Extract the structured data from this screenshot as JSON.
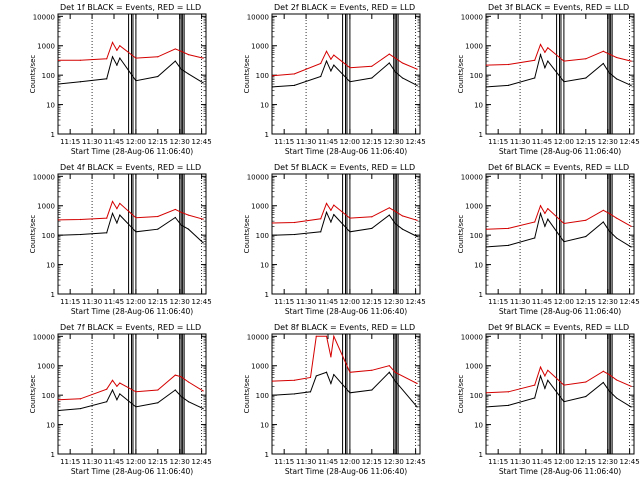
{
  "figure": {
    "common": {
      "ylabel": "Counts/sec",
      "xlabel": "Start Time (28-Aug-06 11:06:40)",
      "x_ticks": [
        "11:15",
        "11:30",
        "11:45",
        "12:00",
        "12:15",
        "12:30",
        "12:45"
      ],
      "y_ticks": [
        "1",
        "10",
        "100",
        "1000",
        "10000"
      ],
      "series": [
        {
          "name": "BLACK = Events",
          "color": "#000000"
        },
        {
          "name": "RED = LLD",
          "color": "#d40000"
        }
      ]
    }
  },
  "chart_data": [
    {
      "type": "line",
      "title": "Det 1f BLACK = Events, RED = LLD",
      "xlabel": "Start Time (28-Aug-06 11:06:40)",
      "ylabel": "Counts/sec",
      "yscale": "log",
      "ylim": [
        1,
        12000
      ],
      "xlim": [
        "11:06:40",
        "12:48:00"
      ],
      "x": [
        "11:07",
        "11:22",
        "11:40",
        "11:44",
        "11:47",
        "11:49",
        "12:00",
        "12:15",
        "12:27",
        "12:31",
        "12:36",
        "12:46"
      ],
      "series": [
        {
          "name": "BLACK = Events",
          "values": [
            50,
            60,
            75,
            420,
            220,
            380,
            65,
            90,
            300,
            160,
            110,
            55
          ]
        },
        {
          "name": "RED = LLD",
          "values": [
            320,
            320,
            360,
            1300,
            700,
            1000,
            380,
            420,
            780,
            650,
            500,
            380
          ]
        }
      ]
    },
    {
      "type": "line",
      "title": "Det 2f BLACK = Events, RED = LLD",
      "xlabel": "Start Time (28-Aug-06 11:06:40)",
      "ylabel": "Counts/sec",
      "yscale": "log",
      "ylim": [
        1,
        12000
      ],
      "xlim": [
        "11:06:40",
        "12:48:00"
      ],
      "x": [
        "11:07",
        "11:22",
        "11:40",
        "11:44",
        "11:47",
        "11:49",
        "12:00",
        "12:15",
        "12:27",
        "12:31",
        "12:36",
        "12:46"
      ],
      "series": [
        {
          "name": "BLACK = Events",
          "values": [
            40,
            45,
            90,
            300,
            140,
            220,
            60,
            80,
            260,
            130,
            80,
            45
          ]
        },
        {
          "name": "RED = LLD",
          "values": [
            95,
            110,
            250,
            650,
            350,
            480,
            180,
            200,
            520,
            380,
            260,
            160
          ]
        }
      ]
    },
    {
      "type": "line",
      "title": "Det 3f BLACK = Events, RED = LLD",
      "xlabel": "Start Time (28-Aug-06 11:06:40)",
      "ylabel": "Counts/sec",
      "yscale": "log",
      "ylim": [
        1,
        12000
      ],
      "xlim": [
        "11:06:40",
        "12:48:00"
      ],
      "x": [
        "11:07",
        "11:22",
        "11:40",
        "11:44",
        "11:47",
        "11:49",
        "12:00",
        "12:15",
        "12:27",
        "12:31",
        "12:36",
        "12:46"
      ],
      "series": [
        {
          "name": "BLACK = Events",
          "values": [
            40,
            45,
            80,
            500,
            180,
            300,
            60,
            80,
            250,
            120,
            75,
            45
          ]
        },
        {
          "name": "RED = LLD",
          "values": [
            220,
            230,
            320,
            1100,
            600,
            850,
            300,
            360,
            650,
            520,
            400,
            300
          ]
        }
      ]
    },
    {
      "type": "line",
      "title": "Det 4f BLACK = Events, RED = LLD",
      "xlabel": "Start Time (28-Aug-06 11:06:40)",
      "ylabel": "Counts/sec",
      "yscale": "log",
      "ylim": [
        1,
        12000
      ],
      "xlim": [
        "11:06:40",
        "12:48:00"
      ],
      "x": [
        "11:07",
        "11:22",
        "11:40",
        "11:44",
        "11:47",
        "11:49",
        "12:00",
        "12:15",
        "12:27",
        "12:31",
        "12:36",
        "12:46"
      ],
      "series": [
        {
          "name": "BLACK = Events",
          "values": [
            100,
            105,
            120,
            550,
            260,
            480,
            130,
            160,
            400,
            220,
            160,
            55
          ]
        },
        {
          "name": "RED = LLD",
          "values": [
            330,
            340,
            380,
            1400,
            800,
            1200,
            390,
            430,
            750,
            600,
            480,
            350
          ]
        }
      ]
    },
    {
      "type": "line",
      "title": "Det 5f BLACK = Events, RED = LLD",
      "xlabel": "Start Time (28-Aug-06 11:06:40)",
      "ylabel": "Counts/sec",
      "yscale": "log",
      "ylim": [
        1,
        12000
      ],
      "xlim": [
        "11:06:40",
        "12:48:00"
      ],
      "x": [
        "11:07",
        "11:22",
        "11:40",
        "11:44",
        "11:47",
        "11:49",
        "12:00",
        "12:15",
        "12:27",
        "12:31",
        "12:36",
        "12:46"
      ],
      "series": [
        {
          "name": "BLACK = Events",
          "values": [
            100,
            105,
            130,
            600,
            280,
            500,
            130,
            170,
            480,
            250,
            160,
            90
          ]
        },
        {
          "name": "RED = LLD",
          "values": [
            260,
            270,
            360,
            1200,
            700,
            1050,
            380,
            420,
            850,
            650,
            450,
            320
          ]
        }
      ]
    },
    {
      "type": "line",
      "title": "Det 6f BLACK = Events, RED = LLD",
      "xlabel": "Start Time (28-Aug-06 11:06:40)",
      "ylabel": "Counts/sec",
      "yscale": "log",
      "ylim": [
        1,
        12000
      ],
      "xlim": [
        "11:06:40",
        "12:48:00"
      ],
      "x": [
        "11:07",
        "11:22",
        "11:40",
        "11:44",
        "11:47",
        "11:49",
        "12:00",
        "12:15",
        "12:27",
        "12:31",
        "12:36",
        "12:46"
      ],
      "series": [
        {
          "name": "BLACK = Events",
          "values": [
            40,
            45,
            80,
            550,
            200,
            350,
            60,
            90,
            280,
            140,
            80,
            40
          ]
        },
        {
          "name": "RED = LLD",
          "values": [
            160,
            170,
            280,
            1000,
            550,
            800,
            250,
            320,
            700,
            550,
            380,
            200
          ]
        }
      ]
    },
    {
      "type": "line",
      "title": "Det 7f BLACK = Events, RED = LLD",
      "xlabel": "Start Time (28-Aug-06 11:06:40)",
      "ylabel": "Counts/sec",
      "yscale": "log",
      "ylim": [
        1,
        12000
      ],
      "xlim": [
        "11:06:40",
        "12:48:00"
      ],
      "x": [
        "11:07",
        "11:22",
        "11:40",
        "11:44",
        "11:47",
        "11:49",
        "12:00",
        "12:15",
        "12:27",
        "12:31",
        "12:36",
        "12:46"
      ],
      "series": [
        {
          "name": "BLACK = Events",
          "values": [
            30,
            35,
            60,
            150,
            70,
            110,
            40,
            55,
            150,
            90,
            60,
            35
          ]
        },
        {
          "name": "RED = LLD",
          "values": [
            70,
            75,
            160,
            320,
            200,
            260,
            130,
            150,
            480,
            420,
            280,
            140
          ]
        }
      ]
    },
    {
      "type": "line",
      "title": "Det 8f BLACK = Events, RED = LLD",
      "xlabel": "Start Time (28-Aug-06 11:06:40)",
      "ylabel": "Counts/sec",
      "yscale": "log",
      "ylim": [
        1,
        12000
      ],
      "xlim": [
        "11:06:40",
        "12:48:00"
      ],
      "x": [
        "11:07",
        "11:22",
        "11:33",
        "11:37",
        "11:44",
        "11:47",
        "11:49",
        "12:00",
        "12:15",
        "12:27",
        "12:31",
        "12:46"
      ],
      "series": [
        {
          "name": "BLACK = Events",
          "values": [
            100,
            110,
            130,
            450,
            600,
            250,
            500,
            120,
            150,
            600,
            300,
            40
          ]
        },
        {
          "name": "RED = LLD",
          "values": [
            300,
            320,
            400,
            10000,
            10000,
            2000,
            10000,
            600,
            700,
            1000,
            600,
            250
          ]
        }
      ]
    },
    {
      "type": "line",
      "title": "Det 9f BLACK = Events, RED = LLD",
      "xlabel": "Start Time (28-Aug-06 11:06:40)",
      "ylabel": "Counts/sec",
      "yscale": "log",
      "ylim": [
        1,
        12000
      ],
      "xlim": [
        "11:06:40",
        "12:48:00"
      ],
      "x": [
        "11:07",
        "11:22",
        "11:40",
        "11:44",
        "11:47",
        "11:49",
        "12:00",
        "12:15",
        "12:27",
        "12:31",
        "12:36",
        "12:46"
      ],
      "series": [
        {
          "name": "BLACK = Events",
          "values": [
            40,
            45,
            80,
            450,
            170,
            320,
            60,
            90,
            270,
            140,
            80,
            40
          ]
        },
        {
          "name": "RED = LLD",
          "values": [
            120,
            130,
            220,
            900,
            450,
            700,
            220,
            280,
            650,
            500,
            330,
            200
          ]
        }
      ]
    }
  ]
}
